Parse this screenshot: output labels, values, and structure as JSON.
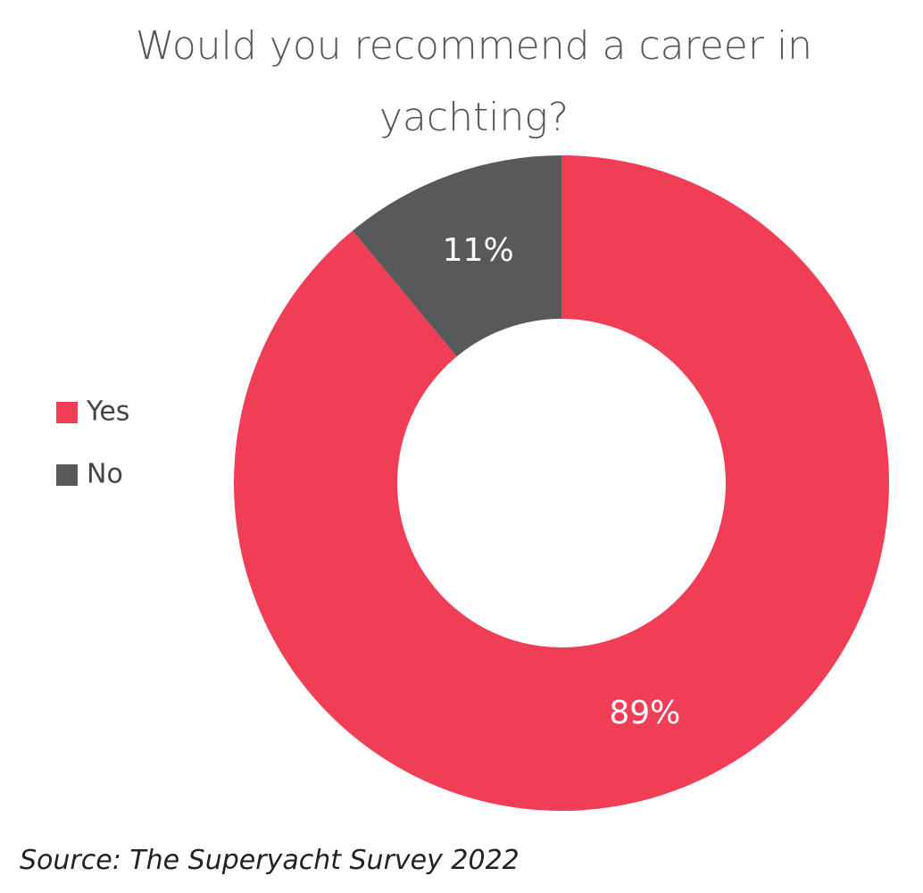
{
  "chart_data": {
    "type": "donut",
    "title": "Would you recommend a career in yachting?",
    "categories": [
      "Yes",
      "No"
    ],
    "values": [
      89,
      11
    ],
    "value_labels": [
      "89%",
      "11%"
    ],
    "colors": [
      "#ef3e55",
      "#58595b"
    ],
    "legend": "left",
    "source": "Source: The Superyacht Survey 2022"
  }
}
